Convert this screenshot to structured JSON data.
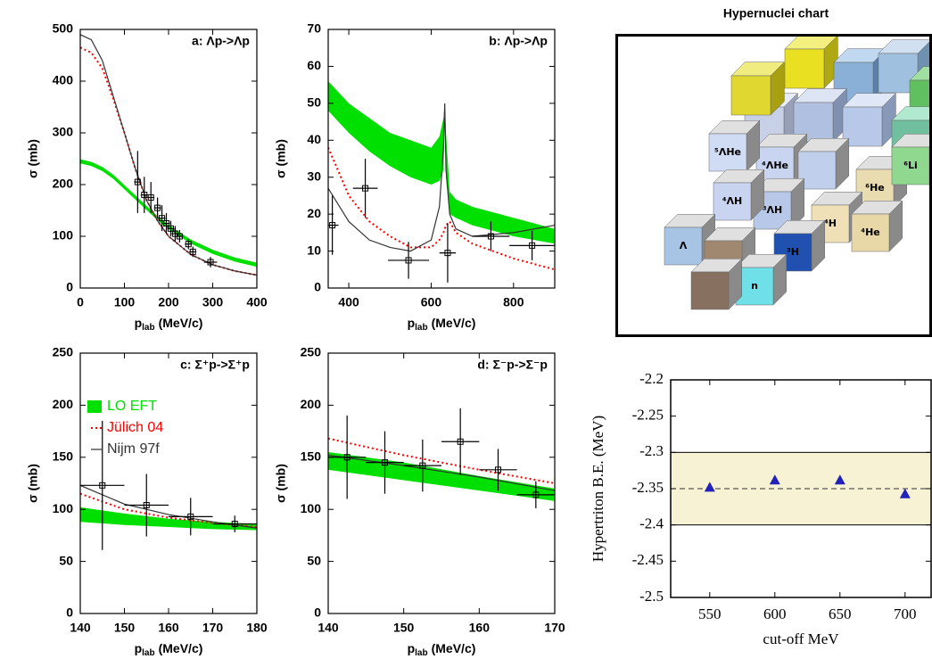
{
  "chart_data": [
    {
      "type": "line",
      "annotation": "a: Λp->Λp",
      "y_label": "σ (mb)",
      "x_label_symbol": "p",
      "x_label_sub": "lab",
      "x_label": "(MeV/c)",
      "xlim": [
        0,
        400
      ],
      "xticks": [
        0,
        100,
        200,
        300,
        400
      ],
      "ylim": [
        0,
        500
      ],
      "yticks": [
        0,
        100,
        200,
        300,
        400,
        500
      ],
      "series": [
        {
          "color": "#00e000",
          "x": [
            0,
            25,
            50,
            75,
            100,
            125,
            150,
            175,
            200,
            250,
            300,
            350,
            400
          ],
          "lower": [
            241,
            236,
            226,
            211,
            191,
            171,
            151,
            131,
            114,
            86,
            66,
            51,
            41
          ],
          "upper": [
            249,
            244,
            234,
            219,
            199,
            179,
            159,
            139,
            122,
            94,
            74,
            59,
            49
          ]
        },
        {
          "color": "#ff0000",
          "dash": "dotted",
          "x": [
            0,
            25,
            50,
            75,
            100,
            125,
            150,
            175,
            200,
            250,
            300,
            350,
            400
          ],
          "y": [
            465,
            455,
            425,
            365,
            300,
            230,
            170,
            130,
            100,
            65,
            45,
            33,
            25
          ]
        },
        {
          "color": "#333333",
          "x": [
            0,
            25,
            50,
            75,
            100,
            125,
            150,
            175,
            200,
            250,
            300,
            350,
            400
          ],
          "y": [
            490,
            480,
            440,
            370,
            300,
            230,
            170,
            130,
            100,
            65,
            45,
            33,
            25
          ]
        },
        {
          "color": "#000000",
          "style": "points",
          "x": [
            130,
            145,
            160,
            175,
            185,
            195,
            205,
            215,
            225,
            245,
            255,
            295
          ],
          "y": [
            205,
            180,
            175,
            155,
            135,
            125,
            115,
            105,
            100,
            85,
            70,
            50
          ],
          "xerr": [
            8,
            8,
            8,
            8,
            8,
            8,
            8,
            8,
            8,
            8,
            8,
            15
          ],
          "yerr": [
            60,
            35,
            30,
            20,
            25,
            20,
            15,
            15,
            12,
            10,
            10,
            10
          ]
        }
      ]
    },
    {
      "type": "line",
      "annotation": "b: Λp->Λp",
      "y_label": "σ (mb)",
      "x_label_symbol": "p",
      "x_label_sub": "lab",
      "x_label": "(MeV/c)",
      "xlim": [
        350,
        900
      ],
      "xticks": [
        400,
        600,
        800
      ],
      "ylim": [
        0,
        70
      ],
      "yticks": [
        0,
        10,
        20,
        30,
        40,
        50,
        60,
        70
      ],
      "series": [
        {
          "color": "#00e000",
          "x": [
            350,
            400,
            450,
            500,
            550,
            600,
            620,
            630,
            633,
            636,
            645,
            660,
            700,
            800,
            900
          ],
          "lower": [
            48,
            42,
            37,
            33,
            30,
            28,
            29,
            32,
            50,
            30,
            20,
            19,
            17,
            14,
            12
          ],
          "upper": [
            56,
            50,
            46,
            42,
            40,
            38,
            41,
            46,
            50,
            42,
            26,
            24,
            22,
            19,
            16
          ]
        },
        {
          "color": "#ff0000",
          "dash": "dotted",
          "x": [
            350,
            400,
            450,
            500,
            550,
            600,
            620,
            630,
            633,
            636,
            645,
            660,
            700,
            800,
            900
          ],
          "y": [
            38,
            25,
            18,
            14,
            11,
            11,
            13,
            15,
            16,
            17,
            18,
            15,
            12,
            8,
            5
          ]
        },
        {
          "color": "#333333",
          "x": [
            350,
            400,
            450,
            500,
            550,
            600,
            620,
            630,
            633,
            636,
            645,
            660,
            700,
            800,
            900
          ],
          "y": [
            27,
            18,
            13,
            11,
            10,
            13,
            22,
            38,
            50,
            32,
            20,
            16,
            14,
            15,
            17
          ]
        },
        {
          "color": "#000000",
          "style": "points",
          "x": [
            360,
            440,
            545,
            640,
            745,
            845
          ],
          "y": [
            17,
            27,
            7.5,
            9.5,
            14,
            11.5
          ],
          "xerr": [
            15,
            30,
            50,
            20,
            45,
            55
          ],
          "yerr": [
            8,
            8,
            5,
            8,
            4,
            4
          ]
        }
      ]
    },
    {
      "type": "line",
      "annotation": "c: Σ⁺p->Σ⁺p",
      "y_label": "σ (mb)",
      "x_label_symbol": "p",
      "x_label_sub": "lab",
      "x_label": "(MeV/c)",
      "xlim": [
        140,
        180
      ],
      "xticks": [
        140,
        150,
        160,
        170,
        180
      ],
      "ylim": [
        0,
        250
      ],
      "yticks": [
        0,
        50,
        100,
        150,
        200,
        250
      ],
      "legend": "upper left",
      "series": [
        {
          "name": "LO EFT",
          "color": "#00e000",
          "x": [
            140,
            150,
            160,
            170,
            180
          ],
          "lower": [
            88,
            85,
            83,
            81,
            80
          ],
          "upper": [
            102,
            96,
            91,
            88,
            86
          ]
        },
        {
          "name": "Jülich 04",
          "color": "#ff0000",
          "dash": "dotted",
          "x": [
            140,
            150,
            160,
            170,
            180
          ],
          "y": [
            115,
            100,
            92,
            87,
            83
          ]
        },
        {
          "name": "Nijm 97f",
          "color": "#333333",
          "x": [
            140,
            150,
            160,
            170,
            180
          ],
          "y": [
            123,
            105,
            95,
            88,
            82
          ]
        },
        {
          "color": "#000000",
          "style": "points",
          "x": [
            145,
            155,
            165,
            175
          ],
          "y": [
            123,
            104,
            93,
            86
          ],
          "xerr": [
            5,
            5,
            5,
            5
          ],
          "yerr": [
            62,
            30,
            18,
            8
          ]
        }
      ]
    },
    {
      "type": "line",
      "annotation": "d: Σ⁻p->Σ⁻p",
      "y_label": "σ (mb)",
      "x_label_symbol": "p",
      "x_label_sub": "lab",
      "x_label": "(MeV/c)",
      "xlim": [
        140,
        170
      ],
      "xticks": [
        140,
        150,
        160,
        170
      ],
      "ylim": [
        0,
        250
      ],
      "yticks": [
        0,
        50,
        100,
        150,
        200,
        250
      ],
      "series": [
        {
          "color": "#00e000",
          "x": [
            140,
            150,
            160,
            170
          ],
          "lower": [
            138,
            128,
            118,
            108
          ],
          "upper": [
            155,
            145,
            132,
            120
          ]
        },
        {
          "color": "#ff0000",
          "dash": "dotted",
          "x": [
            140,
            150,
            160,
            170
          ],
          "y": [
            168,
            152,
            138,
            125
          ]
        },
        {
          "color": "#333333",
          "x": [
            140,
            150,
            160,
            170
          ],
          "y": [
            152,
            142,
            131,
            118
          ]
        },
        {
          "color": "#000000",
          "style": "points",
          "x": [
            142.5,
            147.5,
            152.5,
            157.5,
            162.5,
            167.5
          ],
          "y": [
            150,
            145,
            142,
            165,
            138,
            114
          ],
          "xerr": [
            2.5,
            2.5,
            2.5,
            2.5,
            2.5,
            2.5
          ],
          "yerr": [
            40,
            30,
            25,
            32,
            20,
            13
          ]
        }
      ]
    },
    {
      "type": "scatter",
      "y_label": "Hypertriton B.E. (MeV)",
      "x_label": "cut-off MeV",
      "xlim": [
        520,
        720
      ],
      "xticks": [
        550,
        600,
        650,
        700
      ],
      "ylim": [
        -2.5,
        -2.2
      ],
      "yticks": [
        -2.2,
        -2.25,
        -2.3,
        -2.35,
        -2.4,
        -2.45,
        -2.5
      ],
      "band": [
        -2.4,
        -2.3
      ],
      "band_color": "#f7f2d4",
      "reference": -2.35,
      "series": [
        {
          "color": "#2222bb",
          "x": [
            550,
            600,
            650,
            700
          ],
          "y": [
            -2.348,
            -2.338,
            -2.338,
            -2.357
          ]
        }
      ]
    }
  ],
  "image": {
    "title": "Hypernuclei chart",
    "labels": [
      "Λ",
      "n",
      "³H",
      "⁴H",
      "⁴He",
      "⁶He",
      "⁶Li",
      "³ΛH",
      "⁴ΛH",
      "⁴ΛHe",
      "⁵ΛHe"
    ]
  }
}
